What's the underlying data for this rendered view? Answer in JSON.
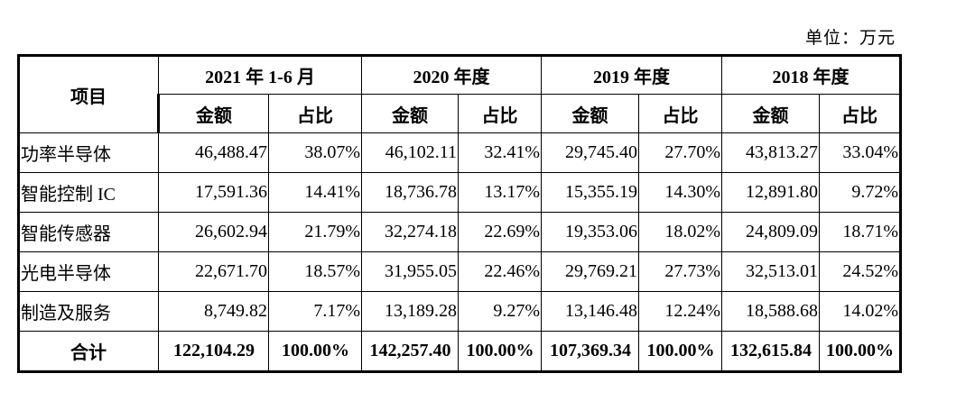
{
  "unit_label": "单位：万元",
  "table": {
    "item_header": "项目",
    "periods": [
      {
        "label": "2021 年 1-6 月",
        "amount_label": "金额",
        "ratio_label": "占比"
      },
      {
        "label": "2020 年度",
        "amount_label": "金额",
        "ratio_label": "占比"
      },
      {
        "label": "2019 年度",
        "amount_label": "金额",
        "ratio_label": "占比"
      },
      {
        "label": "2018 年度",
        "amount_label": "金额",
        "ratio_label": "占比"
      }
    ],
    "rows": [
      {
        "item": "功率半导体",
        "values": [
          "46,488.47",
          "38.07%",
          "46,102.11",
          "32.41%",
          "29,745.40",
          "27.70%",
          "43,813.27",
          "33.04%"
        ]
      },
      {
        "item": "智能控制 IC",
        "values": [
          "17,591.36",
          "14.41%",
          "18,736.78",
          "13.17%",
          "15,355.19",
          "14.30%",
          "12,891.80",
          "9.72%"
        ]
      },
      {
        "item": "智能传感器",
        "values": [
          "26,602.94",
          "21.79%",
          "32,274.18",
          "22.69%",
          "19,353.06",
          "18.02%",
          "24,809.09",
          "18.71%"
        ]
      },
      {
        "item": "光电半导体",
        "values": [
          "22,671.70",
          "18.57%",
          "31,955.05",
          "22.46%",
          "29,769.21",
          "27.73%",
          "32,513.01",
          "24.52%"
        ]
      },
      {
        "item": "制造及服务",
        "values": [
          "8,749.82",
          "7.17%",
          "13,189.28",
          "9.27%",
          "13,146.48",
          "12.24%",
          "18,588.68",
          "14.02%"
        ]
      }
    ],
    "total": {
      "item": "合计",
      "values": [
        "122,104.29",
        "100.00%",
        "142,257.40",
        "100.00%",
        "107,369.34",
        "100.00%",
        "132,615.84",
        "100.00%"
      ]
    }
  }
}
